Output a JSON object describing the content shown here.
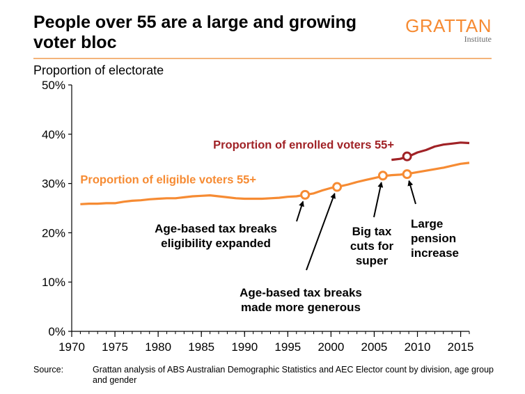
{
  "title": "People over 55 are a large and growing voter bloc",
  "logo": {
    "name": "GRATTAN",
    "sub": "Institute"
  },
  "colors": {
    "orange": "#F68B33",
    "darkred": "#A02226",
    "accent_rule": "#F4B47A"
  },
  "source": {
    "label": "Source:",
    "text": "Grattan analysis of ABS Australian Demographic Statistics and AEC Elector count by division, age group and gender"
  },
  "chart_data": {
    "type": "line",
    "ylabel": "Proportion of electorate",
    "xlim": [
      1970,
      2016
    ],
    "ylim": [
      0,
      50
    ],
    "x_ticks": [
      "1970",
      "1975",
      "1980",
      "1985",
      "1990",
      "1995",
      "2000",
      "2005",
      "2010",
      "2015"
    ],
    "y_ticks": [
      "0%",
      "10%",
      "20%",
      "30%",
      "40%",
      "50%"
    ],
    "series": [
      {
        "name": "Proportion of eligible voters 55+",
        "color": "#F68B33",
        "x": [
          1971,
          1972,
          1973,
          1974,
          1975,
          1976,
          1977,
          1978,
          1979,
          1980,
          1981,
          1982,
          1983,
          1984,
          1985,
          1986,
          1987,
          1988,
          1989,
          1990,
          1991,
          1992,
          1993,
          1994,
          1995,
          1996,
          1997,
          1998,
          1999,
          2000,
          2001,
          2002,
          2003,
          2004,
          2005,
          2006,
          2007,
          2008,
          2009,
          2010,
          2011,
          2012,
          2013,
          2014,
          2015,
          2016
        ],
        "y": [
          25.8,
          25.9,
          25.9,
          26.0,
          26.0,
          26.3,
          26.5,
          26.6,
          26.8,
          26.9,
          27.0,
          27.0,
          27.2,
          27.4,
          27.5,
          27.6,
          27.4,
          27.2,
          27.0,
          26.9,
          26.9,
          26.9,
          27.0,
          27.1,
          27.3,
          27.4,
          27.7,
          28.0,
          28.6,
          29.1,
          29.4,
          29.8,
          30.3,
          30.7,
          31.1,
          31.5,
          31.7,
          31.8,
          32.0,
          32.3,
          32.6,
          32.9,
          33.2,
          33.6,
          34.0,
          34.2
        ]
      },
      {
        "name": "Proportion of enrolled voters 55+",
        "color": "#A02226",
        "x": [
          2007,
          2008,
          2009,
          2010,
          2011,
          2012,
          2013,
          2014,
          2015,
          2016
        ],
        "y": [
          34.8,
          35.0,
          35.5,
          36.3,
          36.8,
          37.5,
          37.9,
          38.1,
          38.3,
          38.2
        ]
      }
    ],
    "markers": [
      {
        "series": 0,
        "x": 1997,
        "y": 27.7
      },
      {
        "series": 0,
        "x": 2000.7,
        "y": 29.3
      },
      {
        "series": 0,
        "x": 2006,
        "y": 31.6
      },
      {
        "series": 0,
        "x": 2008.8,
        "y": 31.9
      },
      {
        "series": 1,
        "x": 2008.8,
        "y": 35.5
      }
    ],
    "annotations": [
      {
        "lines": [
          "Age-based tax breaks",
          "eligibility expanded"
        ],
        "target_x": 1997,
        "target_y": 27.7
      },
      {
        "lines": [
          "Age-based tax breaks",
          "made more generous"
        ],
        "target_x": 2000.7,
        "target_y": 29.3
      },
      {
        "lines": [
          "Big tax",
          "cuts for",
          "super"
        ],
        "target_x": 2006,
        "target_y": 31.6
      },
      {
        "lines": [
          "Large",
          "pension",
          "increase"
        ],
        "target_x": 2008.8,
        "target_y": 31.9
      }
    ],
    "grid": false
  }
}
